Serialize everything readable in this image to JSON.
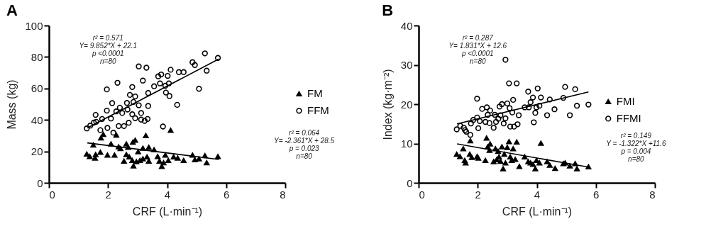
{
  "chart_data": [
    {
      "type": "scatter",
      "title": "A",
      "xlabel": "CRF (L·min⁻¹)",
      "ylabel": "Mass (kg)",
      "xlim": [
        0,
        8
      ],
      "xticks": [
        0,
        2,
        4,
        6,
        8
      ],
      "ylim": [
        0,
        100
      ],
      "yticks": [
        0,
        20,
        40,
        60,
        80,
        100
      ],
      "grid": false,
      "legend": "right",
      "annotations": [
        "r² = 0.571\nY= 9.852*X + 22.1\np <0.0001\nn=80",
        "r² = 0.064\nY= -2.361*X + 28.5\np = 0.023\nn=80"
      ],
      "series": [
        {
          "name": "FM",
          "color": "#000000",
          "marker": "triangle",
          "x": [
            1.28,
            1.38,
            1.5,
            1.56,
            1.58,
            1.74,
            1.76,
            1.84,
            1.98,
            2.1,
            2.22,
            2.28,
            2.36,
            2.42,
            2.54,
            2.62,
            2.62,
            2.68,
            2.72,
            2.82,
            2.84,
            2.86,
            2.92,
            2.96,
            3.02,
            3.08,
            3.18,
            3.18,
            3.28,
            3.38,
            3.32,
            3.38,
            3.56,
            3.68,
            3.74,
            3.82,
            3.88,
            3.94,
            4.04,
            4.12,
            4.22,
            4.36,
            4.56,
            4.86,
            4.94,
            5.08,
            5.28,
            5.34,
            5.72
          ],
          "values": [
            18.3,
            16.8,
            24.1,
            15.8,
            18.0,
            19.5,
            28.6,
            30.8,
            17.7,
            24.8,
            17.7,
            30.4,
            22.9,
            21.8,
            13.8,
            18.0,
            24.8,
            22.6,
            16.5,
            14.3,
            25.9,
            10.8,
            27.1,
            13.5,
            19.8,
            14.3,
            15.3,
            22.1,
            30.1,
            22.6,
            16.5,
            13.8,
            21.1,
            16.8,
            13.8,
            10.5,
            12.8,
            17.7,
            14.3,
            33.4,
            16.5,
            15.8,
            14.3,
            17.7,
            14.7,
            15.3,
            17.3,
            12.8,
            16.8
          ]
        },
        {
          "name": "FFM",
          "color": "#000000",
          "marker": "circle",
          "x": [
            1.28,
            1.4,
            1.52,
            1.6,
            1.58,
            1.74,
            1.8,
            1.96,
            1.96,
            1.98,
            2.1,
            2.14,
            2.18,
            2.28,
            2.32,
            2.36,
            2.4,
            2.54,
            2.64,
            2.66,
            2.7,
            2.74,
            2.82,
            2.86,
            2.92,
            2.92,
            3.04,
            3.04,
            3.12,
            3.18,
            3.24,
            3.3,
            3.36,
            3.36,
            3.34,
            3.56,
            3.7,
            3.76,
            3.8,
            3.86,
            3.94,
            3.96,
            4.02,
            4.06,
            4.08,
            4.12,
            4.34,
            4.4,
            4.56,
            4.86,
            4.94,
            5.08,
            5.28,
            5.34,
            5.72,
            2.48,
            2.82,
            3.12
          ],
          "values": [
            34.6,
            36.4,
            38.3,
            38.8,
            43.2,
            33.5,
            40.6,
            59.4,
            45.9,
            34.9,
            40.9,
            50.7,
            31.9,
            45.4,
            63.6,
            36.1,
            47.8,
            36.1,
            50.8,
            46.6,
            38.2,
            55.9,
            60.9,
            51.4,
            54.9,
            41.1,
            74.0,
            49.3,
            44.4,
            65.0,
            39.4,
            73.2,
            57.1,
            48.9,
            40.6,
            61.4,
            67.7,
            63.2,
            68.9,
            35.8,
            61.7,
            57.4,
            68.0,
            63.2,
            55.2,
            71.9,
            49.6,
            70.4,
            70.4,
            76.7,
            74.9,
            59.8,
            82.3,
            71.3,
            79.4,
            44.4,
            43.6,
            40.2
          ]
        },
        {
          "type": "line",
          "color": "#000000",
          "marker": "none",
          "x": [
            1.3,
            5.75
          ],
          "values": [
            25.4,
            14.9
          ]
        },
        {
          "type": "line",
          "color": "#000000",
          "marker": "none",
          "x": [
            1.3,
            5.75
          ],
          "values": [
            34.9,
            78.7
          ]
        }
      ]
    },
    {
      "type": "scatter",
      "title": "B",
      "xlabel": "CRF (L·min⁻¹)",
      "ylabel": "Index (kg·m⁻²)",
      "xlim": [
        0,
        8
      ],
      "xticks": [
        0,
        2,
        4,
        6,
        8
      ],
      "ylim": [
        0,
        40
      ],
      "yticks": [
        0,
        10,
        20,
        30,
        40
      ],
      "grid": false,
      "legend": "right",
      "annotations": [
        "r² = 0.287\nY= 1.831*X + 12.6\np <0.0001\nn=80",
        "r² = 0.149\nY = -1.322*X +11.6\np = 0.004\nn=80"
      ],
      "series": [
        {
          "name": "FMI",
          "color": "#000000",
          "marker": "triangle",
          "x": [
            1.29,
            1.4,
            1.51,
            1.56,
            1.59,
            1.73,
            1.75,
            1.8,
            1.98,
            2.02,
            2.26,
            2.3,
            2.34,
            2.4,
            2.42,
            2.54,
            2.6,
            2.64,
            2.69,
            2.72,
            2.77,
            2.82,
            2.86,
            2.9,
            2.94,
            3.0,
            3.06,
            3.1,
            3.15,
            3.2,
            3.27,
            3.32,
            3.41,
            3.59,
            3.71,
            3.79,
            3.87,
            3.95,
            3.99,
            4.09,
            4.14,
            4.35,
            4.44,
            4.62,
            4.9,
            4.96,
            5.12,
            5.3,
            5.36,
            5.75
          ],
          "values": [
            7.3,
            6.7,
            8.7,
            5.7,
            5.1,
            7.3,
            10.7,
            6.5,
            6.7,
            6.3,
            5.7,
            11.4,
            9.2,
            8.3,
            9.9,
            5.4,
            8.7,
            5.9,
            8.0,
            6.6,
            5.5,
            9.2,
            3.6,
            7.3,
            5.1,
            9.0,
            10.5,
            6.6,
            5.7,
            8.7,
            6.0,
            10.4,
            4.2,
            6.6,
            5.4,
            5.1,
            4.7,
            3.6,
            5.7,
            5.1,
            10.1,
            5.4,
            4.5,
            3.7,
            4.9,
            5.1,
            4.3,
            4.9,
            3.6,
            4.1
          ]
        },
        {
          "name": "FFMI",
          "color": "#000000",
          "marker": "circle",
          "x": [
            1.29,
            1.41,
            1.53,
            1.57,
            1.61,
            1.75,
            1.77,
            1.85,
            1.98,
            1.98,
            2.02,
            2.07,
            2.15,
            2.26,
            2.31,
            2.34,
            2.4,
            2.42,
            2.54,
            2.58,
            2.62,
            2.7,
            2.74,
            2.77,
            2.82,
            2.88,
            2.94,
            2.94,
            3.0,
            3.06,
            3.08,
            3.1,
            3.17,
            3.2,
            3.23,
            3.32,
            3.35,
            3.39,
            3.59,
            3.71,
            3.73,
            3.79,
            3.87,
            3.9,
            3.95,
            3.99,
            4.03,
            4.09,
            4.14,
            4.35,
            4.44,
            4.6,
            4.9,
            4.96,
            5.12,
            5.3,
            5.36,
            5.75
          ],
          "values": [
            13.6,
            14.5,
            14.0,
            13.4,
            13.0,
            12.2,
            15.1,
            16.0,
            16.6,
            21.4,
            13.9,
            15.7,
            18.8,
            15.5,
            19.2,
            17.3,
            15.2,
            18.4,
            14.0,
            17.3,
            15.5,
            16.3,
            19.4,
            17.2,
            20.0,
            15.1,
            31.3,
            16.4,
            20.2,
            25.3,
            19.0,
            14.3,
            17.9,
            21.1,
            14.3,
            25.3,
            14.9,
            17.2,
            19.2,
            23.2,
            19.2,
            20.5,
            21.7,
            15.4,
            17.8,
            19.2,
            24.0,
            19.6,
            21.7,
            17.2,
            21.2,
            18.7,
            21.6,
            24.4,
            17.2,
            23.8,
            19.6,
            19.9
          ]
        },
        {
          "type": "line",
          "color": "#000000",
          "marker": "none",
          "x": [
            1.3,
            5.75
          ],
          "values": [
            9.9,
            4.0
          ]
        },
        {
          "type": "line",
          "color": "#000000",
          "marker": "none",
          "x": [
            1.3,
            5.75
          ],
          "values": [
            15.0,
            23.1
          ]
        }
      ]
    }
  ]
}
